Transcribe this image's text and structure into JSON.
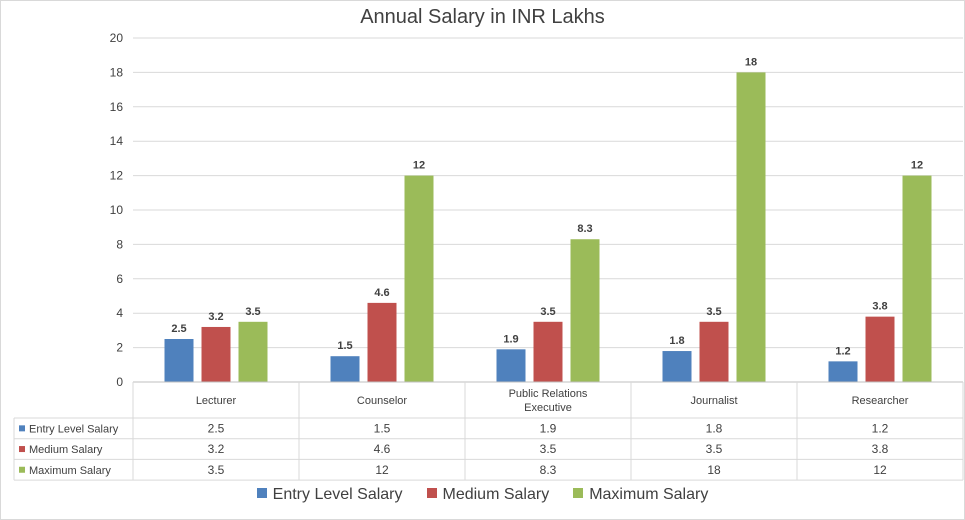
{
  "chart_data": {
    "type": "bar",
    "title": "Annual Salary in INR Lakhs",
    "categories": [
      "Lecturer",
      "Counselor",
      "Public Relations Executive",
      "Journalist",
      "Researcher"
    ],
    "category_lines": [
      [
        "Lecturer"
      ],
      [
        "Counselor"
      ],
      [
        "Public Relations",
        "Executive"
      ],
      [
        "Journalist"
      ],
      [
        "Researcher"
      ]
    ],
    "series": [
      {
        "name": "Entry Level Salary",
        "color": "#4f81bd",
        "values": [
          2.5,
          1.5,
          1.9,
          1.8,
          1.2
        ]
      },
      {
        "name": "Medium Salary",
        "color": "#c0504d",
        "values": [
          3.2,
          4.6,
          3.5,
          3.5,
          3.8
        ]
      },
      {
        "name": "Maximum Salary",
        "color": "#9bbb59",
        "values": [
          3.5,
          12,
          8.3,
          18,
          12
        ]
      }
    ],
    "ylim": [
      0,
      20
    ],
    "yticks": [
      0,
      2,
      4,
      6,
      8,
      10,
      12,
      14,
      16,
      18,
      20
    ],
    "xlabel": "",
    "ylabel": "",
    "grid": true,
    "data_table": true,
    "legend_position": "bottom"
  }
}
